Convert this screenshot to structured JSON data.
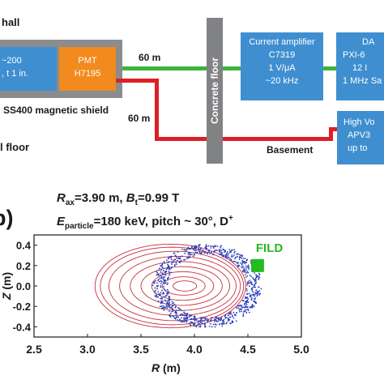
{
  "top": {
    "hall_label": "hall",
    "floor_label": "l floor",
    "basement_label": "Basement",
    "shield_label": "SS400 magnetic shield",
    "concrete_label": "Concrete floor",
    "scint_lines": [
      "~200",
      ", t 1 in."
    ],
    "pmt_lines": [
      "PMT",
      "H7195"
    ],
    "green_cable": "60 m",
    "red_cable": "60 m",
    "amp_lines": [
      "Current amplifier",
      "C7319",
      "1 V/μA",
      "~20 kHz"
    ],
    "daq_lines": [
      "DA",
      "PXI-6",
      "12 I",
      "1 MHz Sa"
    ],
    "hv_lines": [
      "High Vo",
      "APV3",
      "up to"
    ],
    "colors": {
      "shield": "#8a8c8e",
      "pmt": "#f28a1e",
      "box": "#3f8fd0",
      "green": "#3cb43c",
      "red": "#dd1f26",
      "concrete": "#808284"
    }
  },
  "panel_b": {
    "panel_label": "b)",
    "params_line1": {
      "r_sym": "R",
      "r_sub": "ax",
      "r_val": "=3.90 m, ",
      "b_sym": "B",
      "b_sub": "t",
      "b_val": "=0.99 T"
    },
    "params_line2": {
      "e_sym": "E",
      "e_sub": "particle",
      "e_val": "=180 keV, pitch ~ 30°, D",
      "e_sup": "+"
    },
    "fild_label": "FILD",
    "colors": {
      "contours": "#c8323c",
      "particles": "#2a3fb8",
      "fild": "#22bb22"
    }
  },
  "chart_data": {
    "type": "scatter",
    "xlabel": "R (m)",
    "ylabel": "Z (m)",
    "xlim": [
      2.5,
      5.0
    ],
    "ylim": [
      -0.5,
      0.5
    ],
    "xticks": [
      "2.5",
      "3.0",
      "3.5",
      "4.0",
      "4.5",
      "5.0"
    ],
    "yticks": [
      "0.4",
      "0.2",
      "0.0",
      "-0.2",
      "-0.4"
    ],
    "magnetic_axis": [
      3.9,
      0.0
    ],
    "flux_surfaces": [
      {
        "left_R": 3.8,
        "right_R": 4.02,
        "half_height": 0.05
      },
      {
        "left_R": 3.7,
        "right_R": 4.1,
        "half_height": 0.09
      },
      {
        "left_R": 3.6,
        "right_R": 4.18,
        "half_height": 0.14
      },
      {
        "left_R": 3.5,
        "right_R": 4.26,
        "half_height": 0.19
      },
      {
        "left_R": 3.4,
        "right_R": 4.33,
        "half_height": 0.24
      },
      {
        "left_R": 3.3,
        "right_R": 4.39,
        "half_height": 0.29
      },
      {
        "left_R": 3.2,
        "right_R": 4.43,
        "half_height": 0.34
      },
      {
        "left_R": 3.12,
        "right_R": 4.46,
        "half_height": 0.38
      },
      {
        "left_R": 3.07,
        "right_R": 4.48,
        "half_height": 0.41
      }
    ],
    "orbit_band": {
      "left_R": 3.68,
      "right_R": 4.56,
      "half_height": 0.36,
      "thickness_R": 0.14,
      "count": 900
    },
    "fild_position": [
      4.59,
      0.2
    ]
  }
}
